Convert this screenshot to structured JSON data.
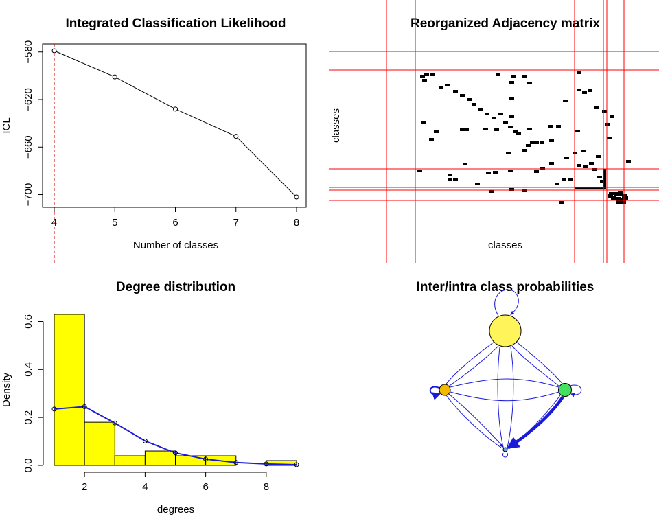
{
  "chart_data": [
    {
      "id": "icl",
      "type": "line",
      "title": "Integrated Classification Likelihood",
      "xlabel": "Number of classes",
      "ylabel": "ICL",
      "x": [
        4,
        5,
        6,
        7,
        8
      ],
      "y": [
        -579,
        -601,
        -628,
        -651,
        -702
      ],
      "xlim": [
        4,
        8
      ],
      "ylim": [
        -705,
        -578
      ],
      "yticks": [
        -580,
        -620,
        -660,
        -700
      ],
      "xticks": [
        4,
        5,
        6,
        7,
        8
      ],
      "selected_x": 4,
      "line_color": "#000000",
      "marker_color": "#000000",
      "selected_line_color": "#cc0000"
    },
    {
      "id": "adjacency",
      "type": "heatmap",
      "title": "Reorganized Adjacency matrix",
      "xlabel": "classes",
      "ylabel": "classes",
      "grid_color": "#ff0000",
      "cell_color": "#000000"
    },
    {
      "id": "degree",
      "type": "bar",
      "title": "Degree distribution",
      "xlabel": "degrees",
      "ylabel": "Density",
      "bins": [
        [
          1,
          2
        ],
        [
          2,
          3
        ],
        [
          3,
          4
        ],
        [
          4,
          5
        ],
        [
          5,
          6
        ],
        [
          6,
          7
        ],
        [
          7,
          8
        ],
        [
          8,
          9
        ]
      ],
      "values": [
        0.63,
        0.18,
        0.04,
        0.06,
        0.04,
        0.04,
        0.0,
        0.02
      ],
      "fit_x": [
        1,
        2,
        3,
        4,
        5,
        6,
        7,
        8,
        9
      ],
      "fit_y": [
        0.235,
        0.245,
        0.177,
        0.102,
        0.052,
        0.026,
        0.012,
        0.006,
        0.003
      ],
      "xlim": [
        1,
        9
      ],
      "ylim": [
        0,
        0.63
      ],
      "xticks": [
        2,
        4,
        6,
        8
      ],
      "yticks": [
        0.0,
        0.2,
        0.4,
        0.6
      ],
      "bar_color": "#ffff00",
      "fit_color": "#1a1adb"
    },
    {
      "id": "network",
      "type": "diagram",
      "title": "Inter/intra class probabilities",
      "nodes": [
        {
          "id": "top",
          "color": "#fff45a"
        },
        {
          "id": "left",
          "color": "#f5b800"
        },
        {
          "id": "right",
          "color": "#44e060"
        },
        {
          "id": "bottom",
          "color": "#6a9fd8"
        }
      ],
      "edge_color": "#1a1adb"
    }
  ]
}
